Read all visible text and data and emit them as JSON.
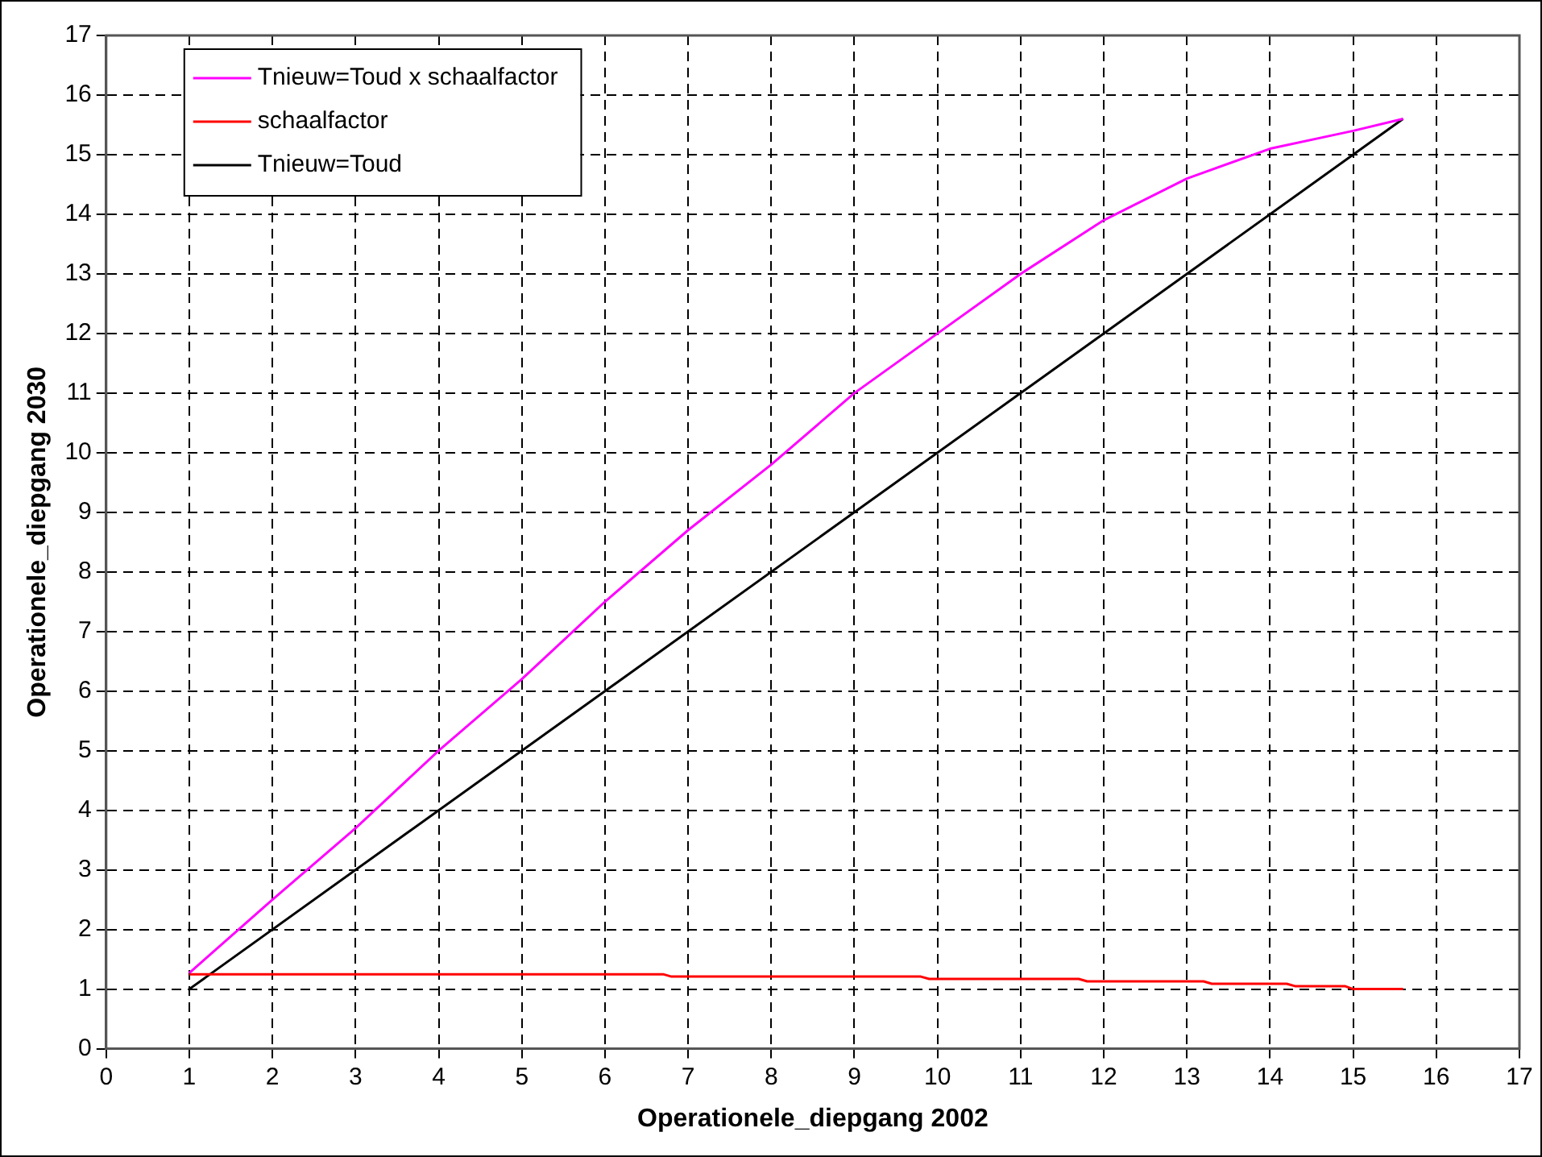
{
  "chart_data": {
    "type": "line",
    "xlabel": "Operationele_diepgang 2002",
    "ylabel": "Operationele_diepgang 2030",
    "xlim": [
      0,
      17
    ],
    "xticks": [
      0,
      1,
      2,
      3,
      4,
      5,
      6,
      7,
      8,
      9,
      10,
      11,
      12,
      13,
      14,
      15,
      16,
      17
    ],
    "ylim": [
      0,
      17
    ],
    "yticks": [
      0,
      1,
      2,
      3,
      4,
      5,
      6,
      7,
      8,
      9,
      10,
      11,
      12,
      13,
      14,
      15,
      16,
      17
    ],
    "grid": true,
    "legend": "top left",
    "marker": "none",
    "series": [
      {
        "name": "Tnieuw=Toud x schaalfactor",
        "color": "#ff00ff",
        "x": [
          1,
          2,
          3,
          4,
          5,
          6,
          7,
          8,
          9,
          10,
          11,
          12,
          13,
          14,
          15,
          15.6
        ],
        "values": [
          1.27,
          2.5,
          3.7,
          5.0,
          6.2,
          7.5,
          8.7,
          9.8,
          11.0,
          12.0,
          13.0,
          13.9,
          14.6,
          15.1,
          15.4,
          15.6
        ]
      },
      {
        "name": "schaalfactor",
        "color": "#ff0000",
        "x": [
          1,
          6.7,
          6.8,
          9.8,
          9.9,
          11.7,
          11.8,
          13.2,
          13.3,
          14.2,
          14.3,
          14.9,
          15.0,
          15.6
        ],
        "values": [
          1.25,
          1.25,
          1.21,
          1.21,
          1.17,
          1.17,
          1.13,
          1.13,
          1.09,
          1.09,
          1.05,
          1.05,
          1.0,
          1.0
        ]
      },
      {
        "name": "Tnieuw=Toud",
        "color": "#000000",
        "x": [
          1,
          15.6
        ],
        "values": [
          1,
          15.6
        ]
      }
    ]
  }
}
